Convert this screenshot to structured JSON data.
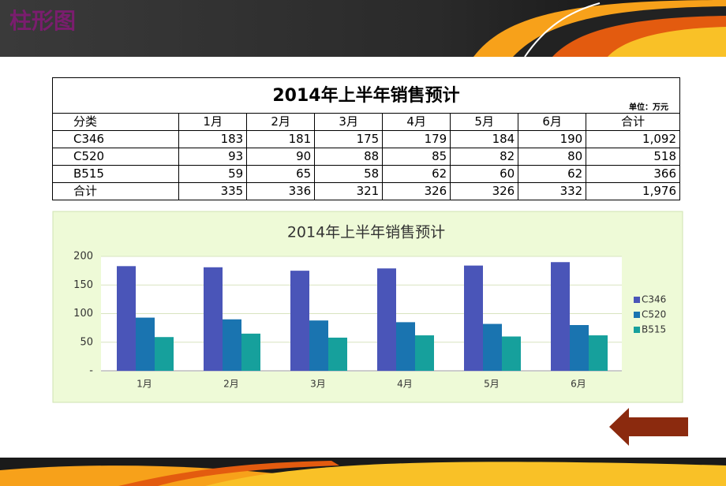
{
  "header": {
    "title": "柱形图"
  },
  "table": {
    "title": "2014年上半年销售预计",
    "unit": "单位：万元",
    "header": [
      "分类",
      "1月",
      "2月",
      "3月",
      "4月",
      "5月",
      "6月",
      "合计"
    ],
    "rows": [
      [
        "C346",
        "183",
        "181",
        "175",
        "179",
        "184",
        "190",
        "1,092"
      ],
      [
        "C520",
        "93",
        "90",
        "88",
        "85",
        "82",
        "80",
        "518"
      ],
      [
        "B515",
        "59",
        "65",
        "58",
        "62",
        "60",
        "62",
        "366"
      ],
      [
        "合计",
        "335",
        "336",
        "321",
        "326",
        "326",
        "332",
        "1,976"
      ]
    ]
  },
  "chart_data": {
    "type": "bar",
    "title": "2014年上半年销售预计",
    "categories": [
      "1月",
      "2月",
      "3月",
      "4月",
      "5月",
      "6月"
    ],
    "series": [
      {
        "name": "C346",
        "color": "#4a55b8",
        "values": [
          183,
          181,
          175,
          179,
          184,
          190
        ]
      },
      {
        "name": "C520",
        "color": "#1a74b0",
        "values": [
          93,
          90,
          88,
          85,
          82,
          80
        ]
      },
      {
        "name": "B515",
        "color": "#16a09c",
        "values": [
          59,
          65,
          58,
          62,
          60,
          62
        ]
      }
    ],
    "ylim": [
      0,
      200
    ],
    "yticks": [
      {
        "value": 0,
        "label": "-"
      },
      50,
      100,
      150,
      200
    ],
    "grid": true,
    "legend": "right"
  }
}
